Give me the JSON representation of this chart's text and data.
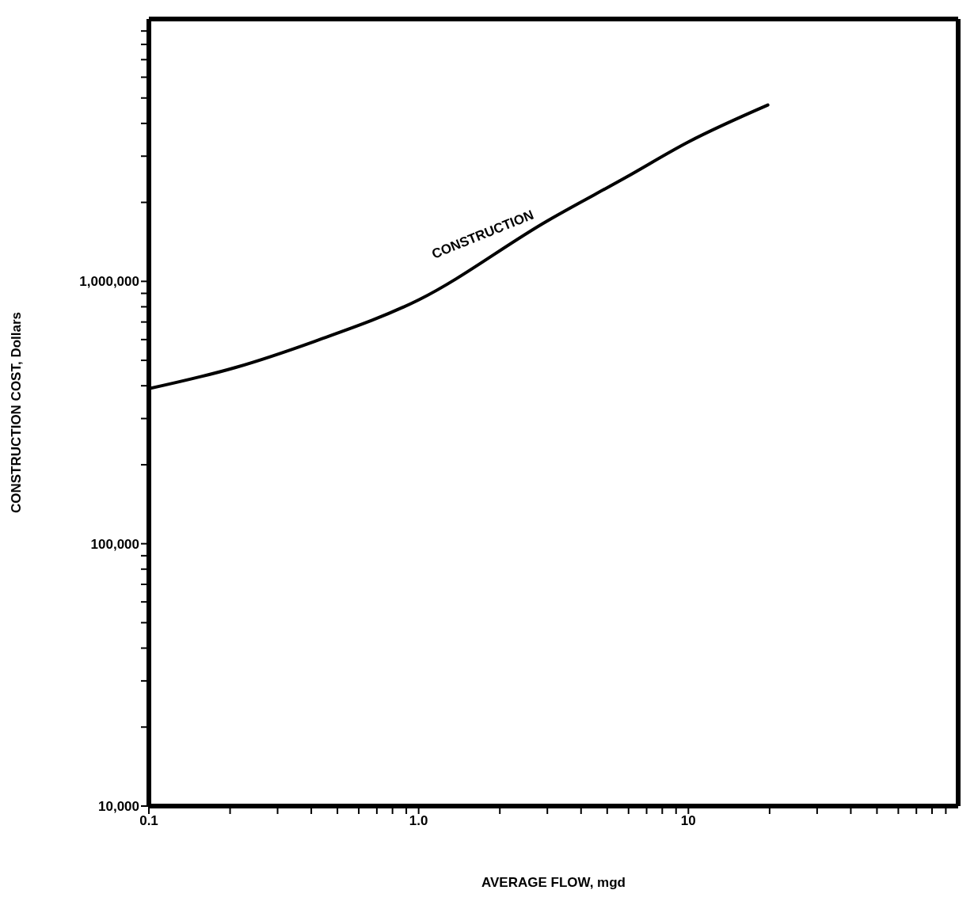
{
  "chart_data": {
    "type": "line",
    "xlabel": "AVERAGE  FLOW,  mgd",
    "ylabel": "CONSTRUCTION COST, Dollars",
    "log": "xy",
    "marker": "none",
    "line_style": "solid",
    "xlim": [
      0.1,
      100
    ],
    "xticks": [
      {
        "value": 0.1,
        "label": "0.1"
      },
      {
        "value": 0.2,
        "label": null
      },
      {
        "value": 0.3,
        "label": null
      },
      {
        "value": 0.4,
        "label": null
      },
      {
        "value": 0.5,
        "label": null
      },
      {
        "value": 0.6,
        "label": null
      },
      {
        "value": 0.7,
        "label": null
      },
      {
        "value": 0.8,
        "label": null
      },
      {
        "value": 0.9,
        "label": null
      },
      {
        "value": 1,
        "label": "1.0"
      },
      {
        "value": 2,
        "label": null
      },
      {
        "value": 3,
        "label": null
      },
      {
        "value": 4,
        "label": null
      },
      {
        "value": 5,
        "label": null
      },
      {
        "value": 6,
        "label": null
      },
      {
        "value": 7,
        "label": null
      },
      {
        "value": 8,
        "label": null
      },
      {
        "value": 9,
        "label": null
      },
      {
        "value": 10,
        "label": "10"
      },
      {
        "value": 20,
        "label": null
      },
      {
        "value": 30,
        "label": null
      },
      {
        "value": 40,
        "label": null
      },
      {
        "value": 50,
        "label": null
      },
      {
        "value": 60,
        "label": null
      },
      {
        "value": 70,
        "label": null
      },
      {
        "value": 80,
        "label": null
      },
      {
        "value": 90,
        "label": null
      }
    ],
    "ylim": [
      10000,
      10000000
    ],
    "yticks": [
      {
        "value": 10000,
        "label": "10,000"
      },
      {
        "value": 20000,
        "label": null
      },
      {
        "value": 30000,
        "label": null
      },
      {
        "value": 40000,
        "label": null
      },
      {
        "value": 50000,
        "label": null
      },
      {
        "value": 60000,
        "label": null
      },
      {
        "value": 70000,
        "label": null
      },
      {
        "value": 80000,
        "label": null
      },
      {
        "value": 90000,
        "label": null
      },
      {
        "value": 100000,
        "label": "100,000"
      },
      {
        "value": 200000,
        "label": null
      },
      {
        "value": 300000,
        "label": null
      },
      {
        "value": 400000,
        "label": null
      },
      {
        "value": 500000,
        "label": null
      },
      {
        "value": 600000,
        "label": null
      },
      {
        "value": 700000,
        "label": null
      },
      {
        "value": 800000,
        "label": null
      },
      {
        "value": 900000,
        "label": null
      },
      {
        "value": 1000000,
        "label": "1,000,000"
      },
      {
        "value": 2000000,
        "label": null
      },
      {
        "value": 3000000,
        "label": null
      },
      {
        "value": 4000000,
        "label": null
      },
      {
        "value": 5000000,
        "label": null
      },
      {
        "value": 6000000,
        "label": null
      },
      {
        "value": 7000000,
        "label": null
      },
      {
        "value": 8000000,
        "label": null
      },
      {
        "value": 9000000,
        "label": null
      }
    ],
    "series": [
      {
        "color": "#000000",
        "x": [
          0.1,
          0.21,
          0.41,
          1,
          3,
          5.9,
          10,
          19.7
        ],
        "values": [
          390000,
          470000,
          590000,
          850000,
          1700000,
          2500000,
          3400000,
          4700000
        ]
      }
    ],
    "annotations": [
      {
        "text": "CONSTRUCTION",
        "x": 1.9,
        "y": 1250000
      }
    ]
  }
}
